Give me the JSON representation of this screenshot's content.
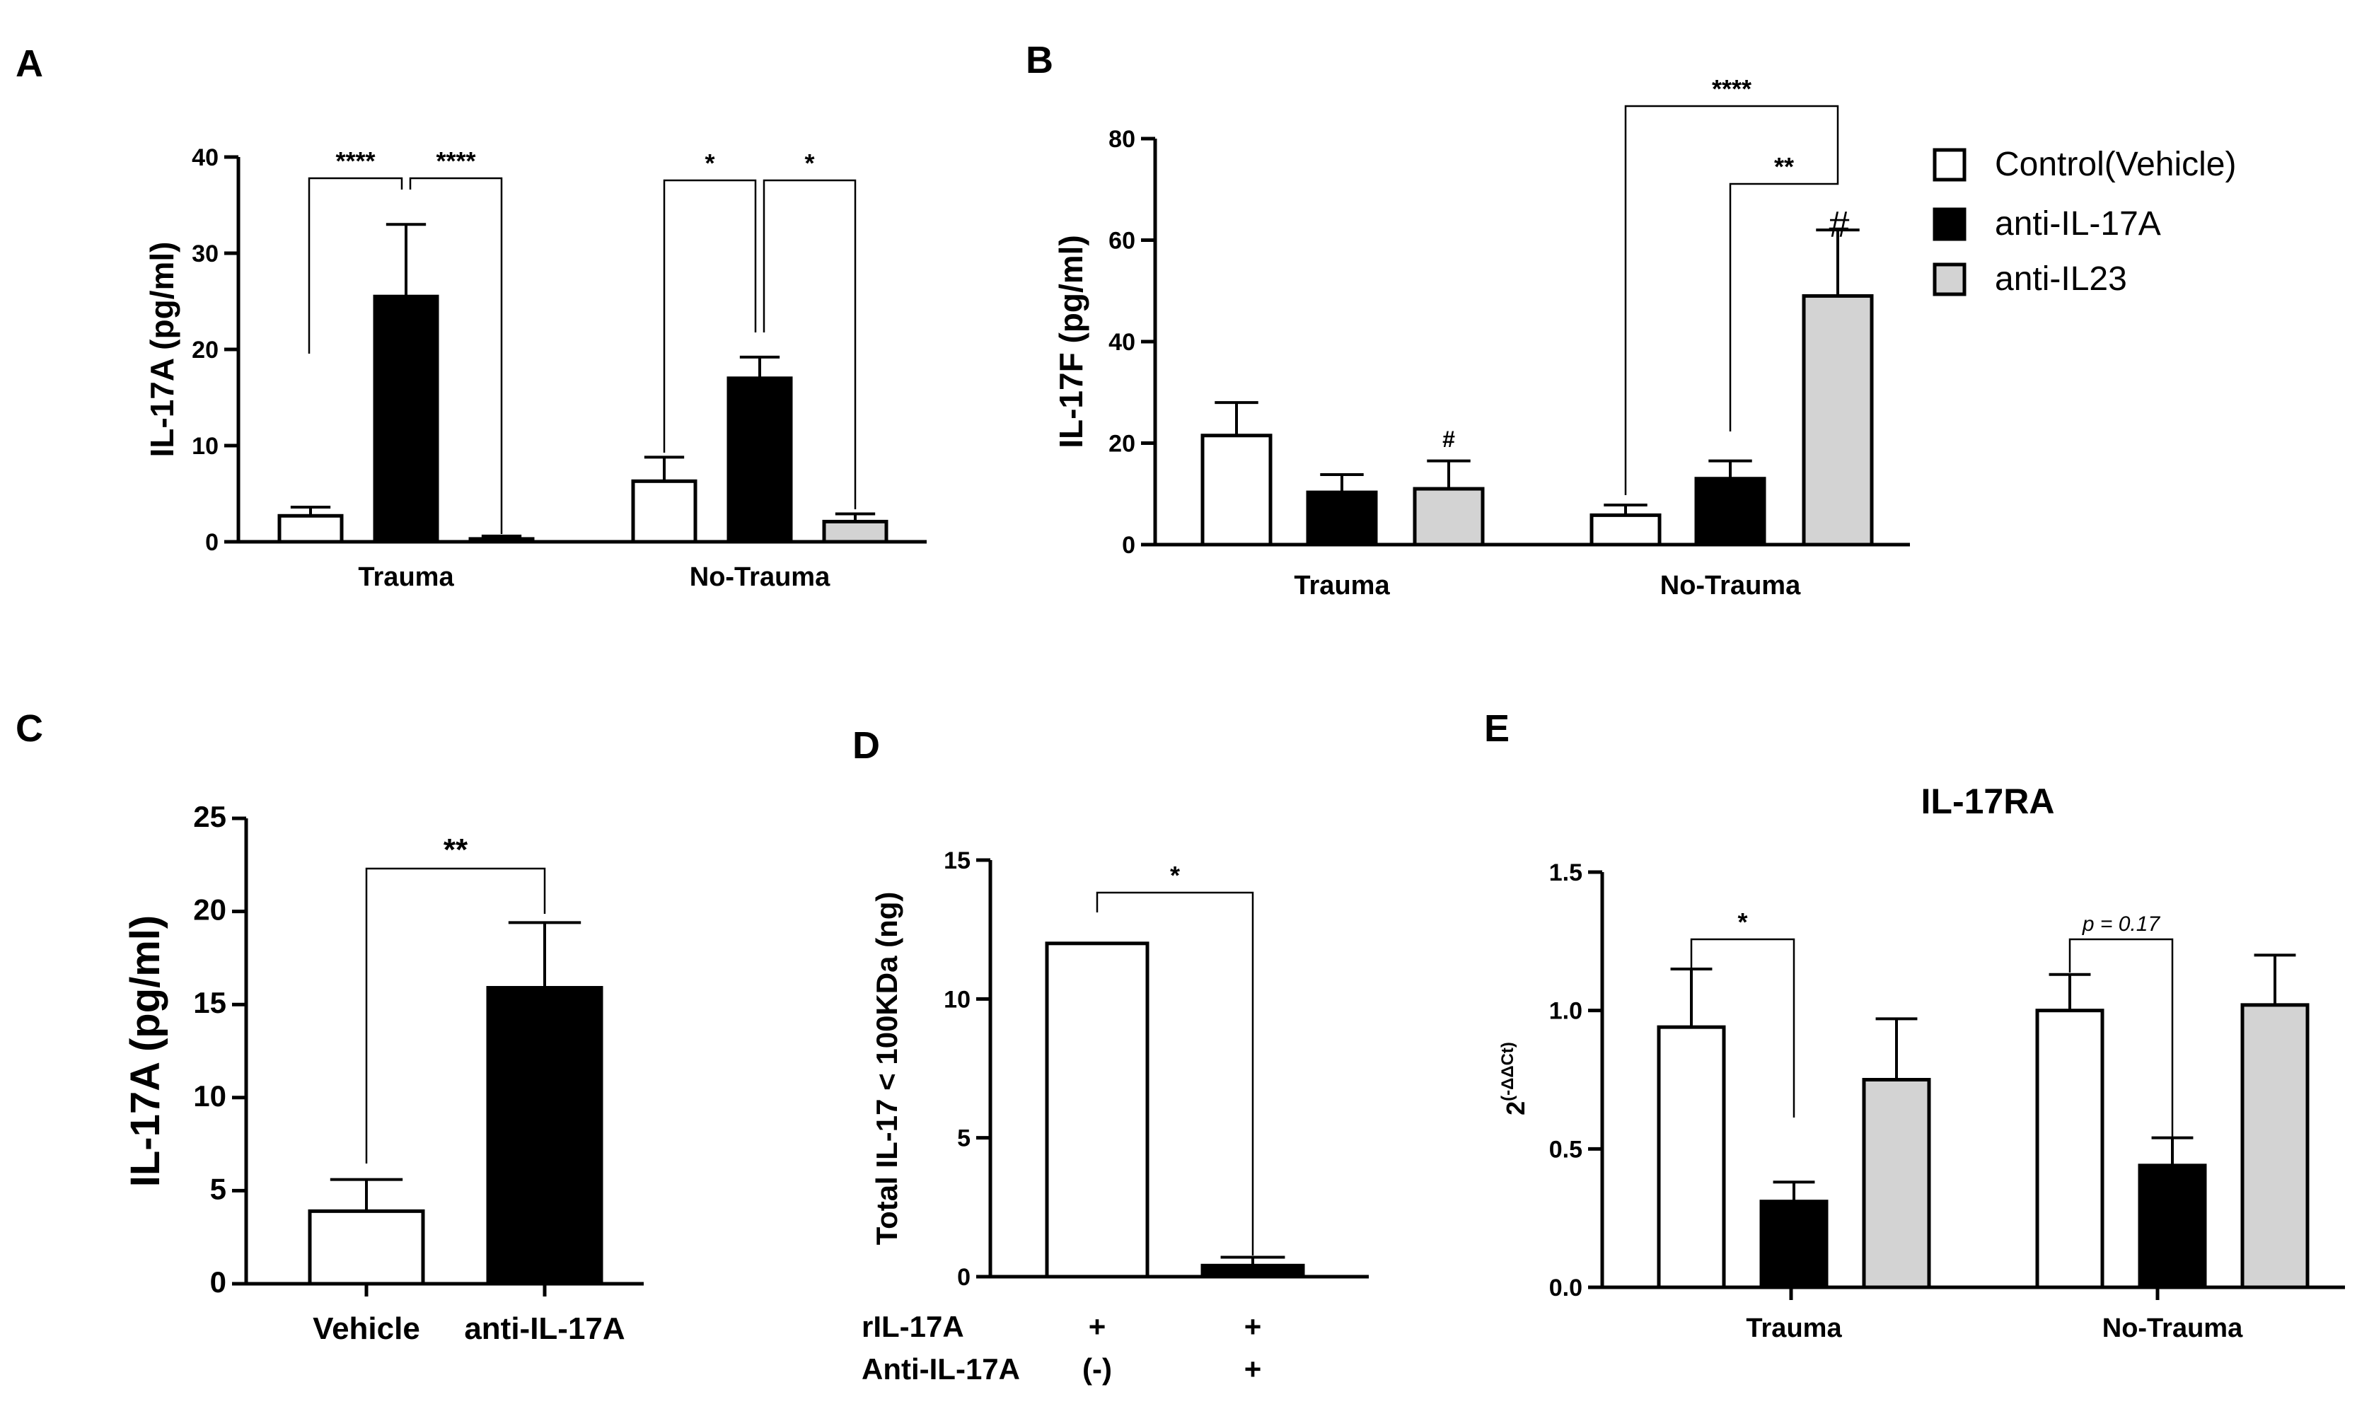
{
  "legend": [
    {
      "label": "Control(Vehicle)",
      "color": "#ffffff"
    },
    {
      "label": "anti-IL-17A",
      "color": "#000000"
    },
    {
      "label": "anti-IL23",
      "color": "#d3d3d3"
    }
  ],
  "colors": {
    "control": "#ffffff",
    "anti_il17a": "#000000",
    "anti_il23": "#d3d3d3",
    "stroke": "#000000"
  },
  "chart_data": [
    {
      "panel": "A",
      "type": "bar",
      "ylabel": "IL-17A (pg/ml)",
      "ylim": [
        0,
        40
      ],
      "yticks": [
        "0",
        "10",
        "20",
        "30",
        "40"
      ],
      "categories": [
        "Trauma",
        "No-Trauma"
      ],
      "series": [
        {
          "name": "Control(Vehicle)",
          "values": [
            2.7,
            6.3
          ],
          "errors": [
            0.9,
            2.5
          ]
        },
        {
          "name": "anti-IL-17A",
          "values": [
            25.5,
            17.0
          ],
          "errors": [
            7.5,
            2.2
          ]
        },
        {
          "name": "anti-IL23",
          "values": [
            0.3,
            2.1
          ],
          "errors": [
            0.3,
            0.8
          ]
        }
      ],
      "annotations": [
        "****",
        "****",
        "*",
        "*"
      ]
    },
    {
      "panel": "B",
      "type": "bar",
      "ylabel": "IL-17F (pg/ml)",
      "ylim": [
        0,
        80
      ],
      "yticks": [
        "0",
        "20",
        "40",
        "60",
        "80"
      ],
      "categories": [
        "Trauma",
        "No-Trauma"
      ],
      "series": [
        {
          "name": "Control(Vehicle)",
          "values": [
            21.5,
            5.8
          ],
          "errors": [
            6.5,
            2.0
          ]
        },
        {
          "name": "anti-IL-17A",
          "values": [
            10.3,
            13.0
          ],
          "errors": [
            3.5,
            3.5
          ]
        },
        {
          "name": "anti-IL23",
          "values": [
            11.0,
            49.0
          ],
          "errors": [
            5.5,
            13.0
          ]
        }
      ],
      "annotations": [
        "#",
        "****",
        "**",
        "#"
      ]
    },
    {
      "panel": "C",
      "type": "bar",
      "ylabel": "IL-17A (pg/ml)",
      "ylim": [
        0,
        25
      ],
      "yticks": [
        "0",
        "5",
        "10",
        "15",
        "20",
        "25"
      ],
      "categories": [
        "Vehicle",
        "anti-IL-17A"
      ],
      "values": [
        3.9,
        15.9
      ],
      "errors": [
        1.7,
        3.5
      ],
      "annotations": [
        "**"
      ]
    },
    {
      "panel": "D",
      "type": "bar",
      "ylabel": "Total IL-17 < 100KDa (ng)",
      "ylim": [
        0,
        15
      ],
      "yticks": [
        "0",
        "5",
        "10",
        "15"
      ],
      "values": [
        12.0,
        0.4
      ],
      "errors": [
        0,
        0.3
      ],
      "conditions": [
        {
          "label": "rIL-17A",
          "values": [
            "+",
            "+"
          ]
        },
        {
          "label": "Anti-IL-17A",
          "values": [
            "(-)",
            "+"
          ]
        }
      ],
      "annotations": [
        "*"
      ]
    },
    {
      "panel": "E",
      "type": "bar",
      "title": "IL-17RA",
      "ylabel": "2(-ΔΔCt)",
      "ylim": [
        0,
        1.5
      ],
      "yticks": [
        "0.0",
        "0.5",
        "1.0",
        "1.5"
      ],
      "categories": [
        "Trauma",
        "No-Trauma"
      ],
      "series": [
        {
          "name": "Control(Vehicle)",
          "values": [
            0.94,
            1.0
          ],
          "errors": [
            0.21,
            0.13
          ]
        },
        {
          "name": "anti-IL-17A",
          "values": [
            0.31,
            0.44
          ],
          "errors": [
            0.07,
            0.1
          ]
        },
        {
          "name": "anti-IL23",
          "values": [
            0.75,
            1.02
          ],
          "errors": [
            0.22,
            0.18
          ]
        }
      ],
      "annotations": [
        "*",
        "p = 0.17"
      ]
    }
  ]
}
